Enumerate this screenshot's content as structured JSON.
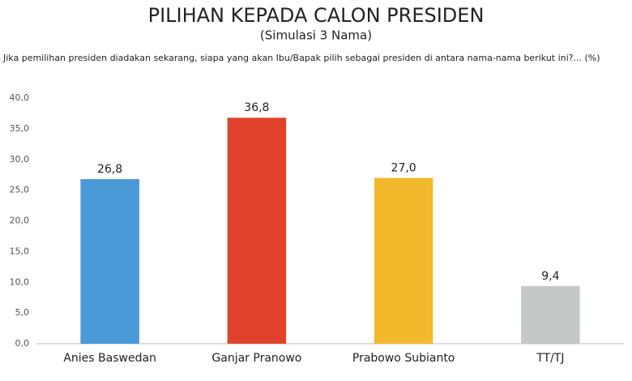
{
  "chart_data": {
    "type": "bar",
    "title": "PILIHAN KEPADA CALON PRESIDEN",
    "subtitle": "(Simulasi 3 Nama)",
    "question": "Jika pemilihan presiden diadakan sekarang, siapa yang akan Ibu/Bapak pilih sebagai presiden di antara nama-nama berikut ini?... (%)",
    "categories": [
      "Anies Baswedan",
      "Ganjar Pranowo",
      "Prabowo Subianto",
      "TT/TJ"
    ],
    "values": [
      26.8,
      36.8,
      27.0,
      9.4
    ],
    "value_labels": [
      "26,8",
      "36,8",
      "27,0",
      "9,4"
    ],
    "colors": [
      "#4a9ad8",
      "#e0432b",
      "#f2b92c",
      "#c4c8c8"
    ],
    "ylim": [
      0,
      40
    ],
    "yticks": [
      {
        "value": 0,
        "label": "0,0"
      },
      {
        "value": 5,
        "label": "5,0"
      },
      {
        "value": 10,
        "label": "10,0"
      },
      {
        "value": 15,
        "label": "15,0"
      },
      {
        "value": 20,
        "label": "20,0"
      },
      {
        "value": 25,
        "label": "25,0"
      },
      {
        "value": 30,
        "label": "30,0"
      },
      {
        "value": 35,
        "label": "35,0"
      },
      {
        "value": 40,
        "label": "40,0"
      }
    ],
    "grid": false
  }
}
